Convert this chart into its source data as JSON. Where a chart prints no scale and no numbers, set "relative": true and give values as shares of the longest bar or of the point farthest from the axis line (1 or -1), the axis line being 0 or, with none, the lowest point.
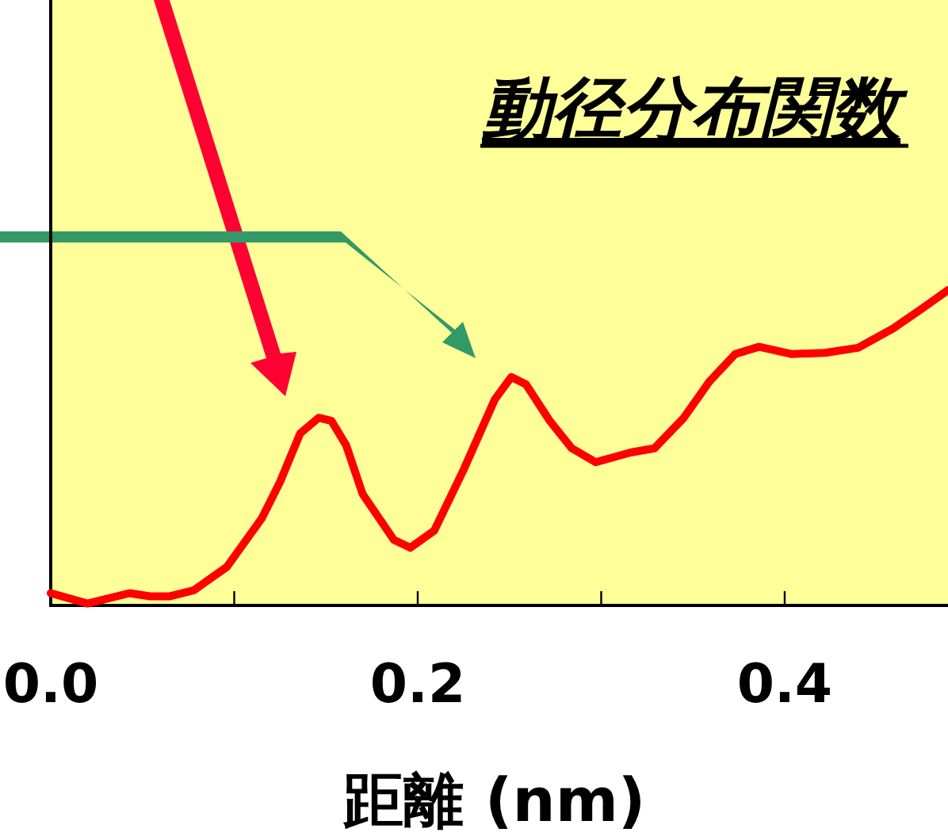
{
  "chart_data": {
    "type": "line",
    "title": "動径分布関数",
    "xlabel": "距離 (nm)",
    "relative": true,
    "color": "#ff0000",
    "xlim": [
      0,
      0.489
    ],
    "xticks": [
      {
        "value": 0,
        "label": "0.0"
      },
      {
        "value": 0.1,
        "label": null
      },
      0.2,
      {
        "value": 0.3,
        "label": null
      },
      0.4
    ],
    "x": [
      0.0,
      0.02,
      0.043,
      0.054,
      0.065,
      0.078,
      0.096,
      0.115,
      0.125,
      0.136,
      0.146,
      0.153,
      0.161,
      0.17,
      0.187,
      0.196,
      0.209,
      0.225,
      0.242,
      0.251,
      0.259,
      0.272,
      0.284,
      0.297,
      0.316,
      0.329,
      0.345,
      0.359,
      0.373,
      0.386,
      0.404,
      0.422,
      0.44,
      0.459,
      0.475,
      0.489
    ],
    "values": [
      0.039,
      0.006,
      0.039,
      0.029,
      0.029,
      0.048,
      0.122,
      0.276,
      0.392,
      0.546,
      0.595,
      0.585,
      0.508,
      0.353,
      0.208,
      0.183,
      0.237,
      0.43,
      0.653,
      0.724,
      0.701,
      0.585,
      0.498,
      0.454,
      0.485,
      0.498,
      0.595,
      0.71,
      0.797,
      0.82,
      0.797,
      0.801,
      0.817,
      0.878,
      0.942,
      1
    ]
  }
}
